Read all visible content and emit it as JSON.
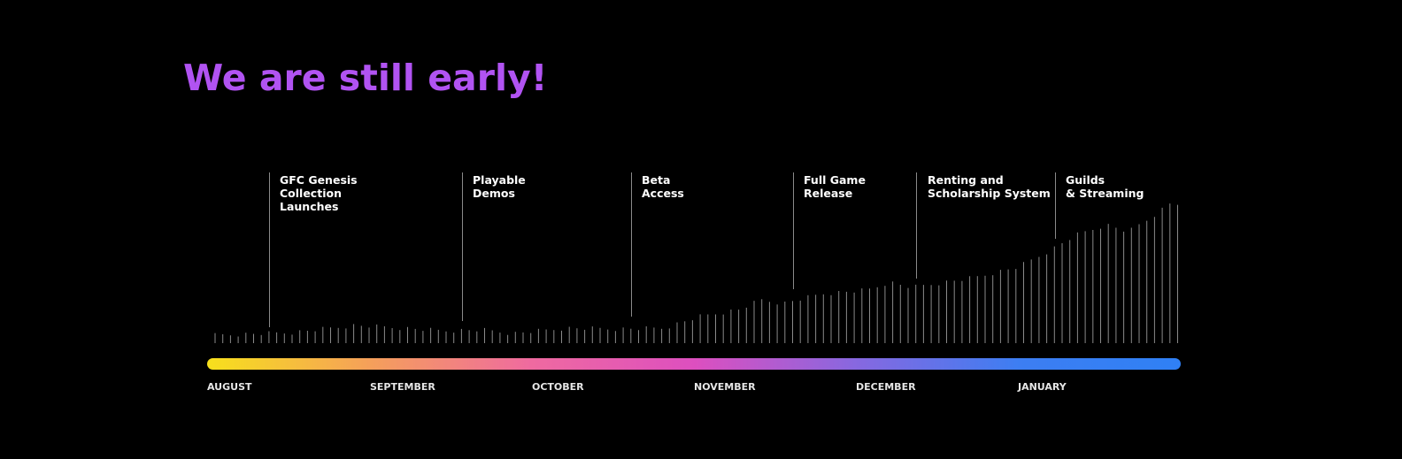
{
  "title": {
    "text": "We are still early!",
    "color": "#b153f2"
  },
  "milestones": [
    {
      "lines": [
        "GFC Genesis",
        "Collection",
        "Launches"
      ]
    },
    {
      "lines": [
        "Playable",
        "Demos"
      ]
    },
    {
      "lines": [
        "Beta",
        "Access"
      ]
    },
    {
      "lines": [
        "Full Game",
        "Release"
      ]
    },
    {
      "lines": [
        "Renting and",
        "Scholarship System"
      ]
    },
    {
      "lines": [
        "Guilds",
        "& Streaming"
      ]
    }
  ],
  "months": [
    "AUGUST",
    "SEPTEMBER",
    "OCTOBER",
    "NOVEMBER",
    "DECEMBER",
    "JANUARY"
  ],
  "gradient_colors": [
    "#f7e01c",
    "#f5a05a",
    "#ef6aa0",
    "#dd4fbf",
    "#8768e0",
    "#3d7ef2",
    "#2f80f5"
  ],
  "colors": {
    "background": "#000000",
    "text": "#ffffff",
    "tick": "#8a8a8a"
  }
}
